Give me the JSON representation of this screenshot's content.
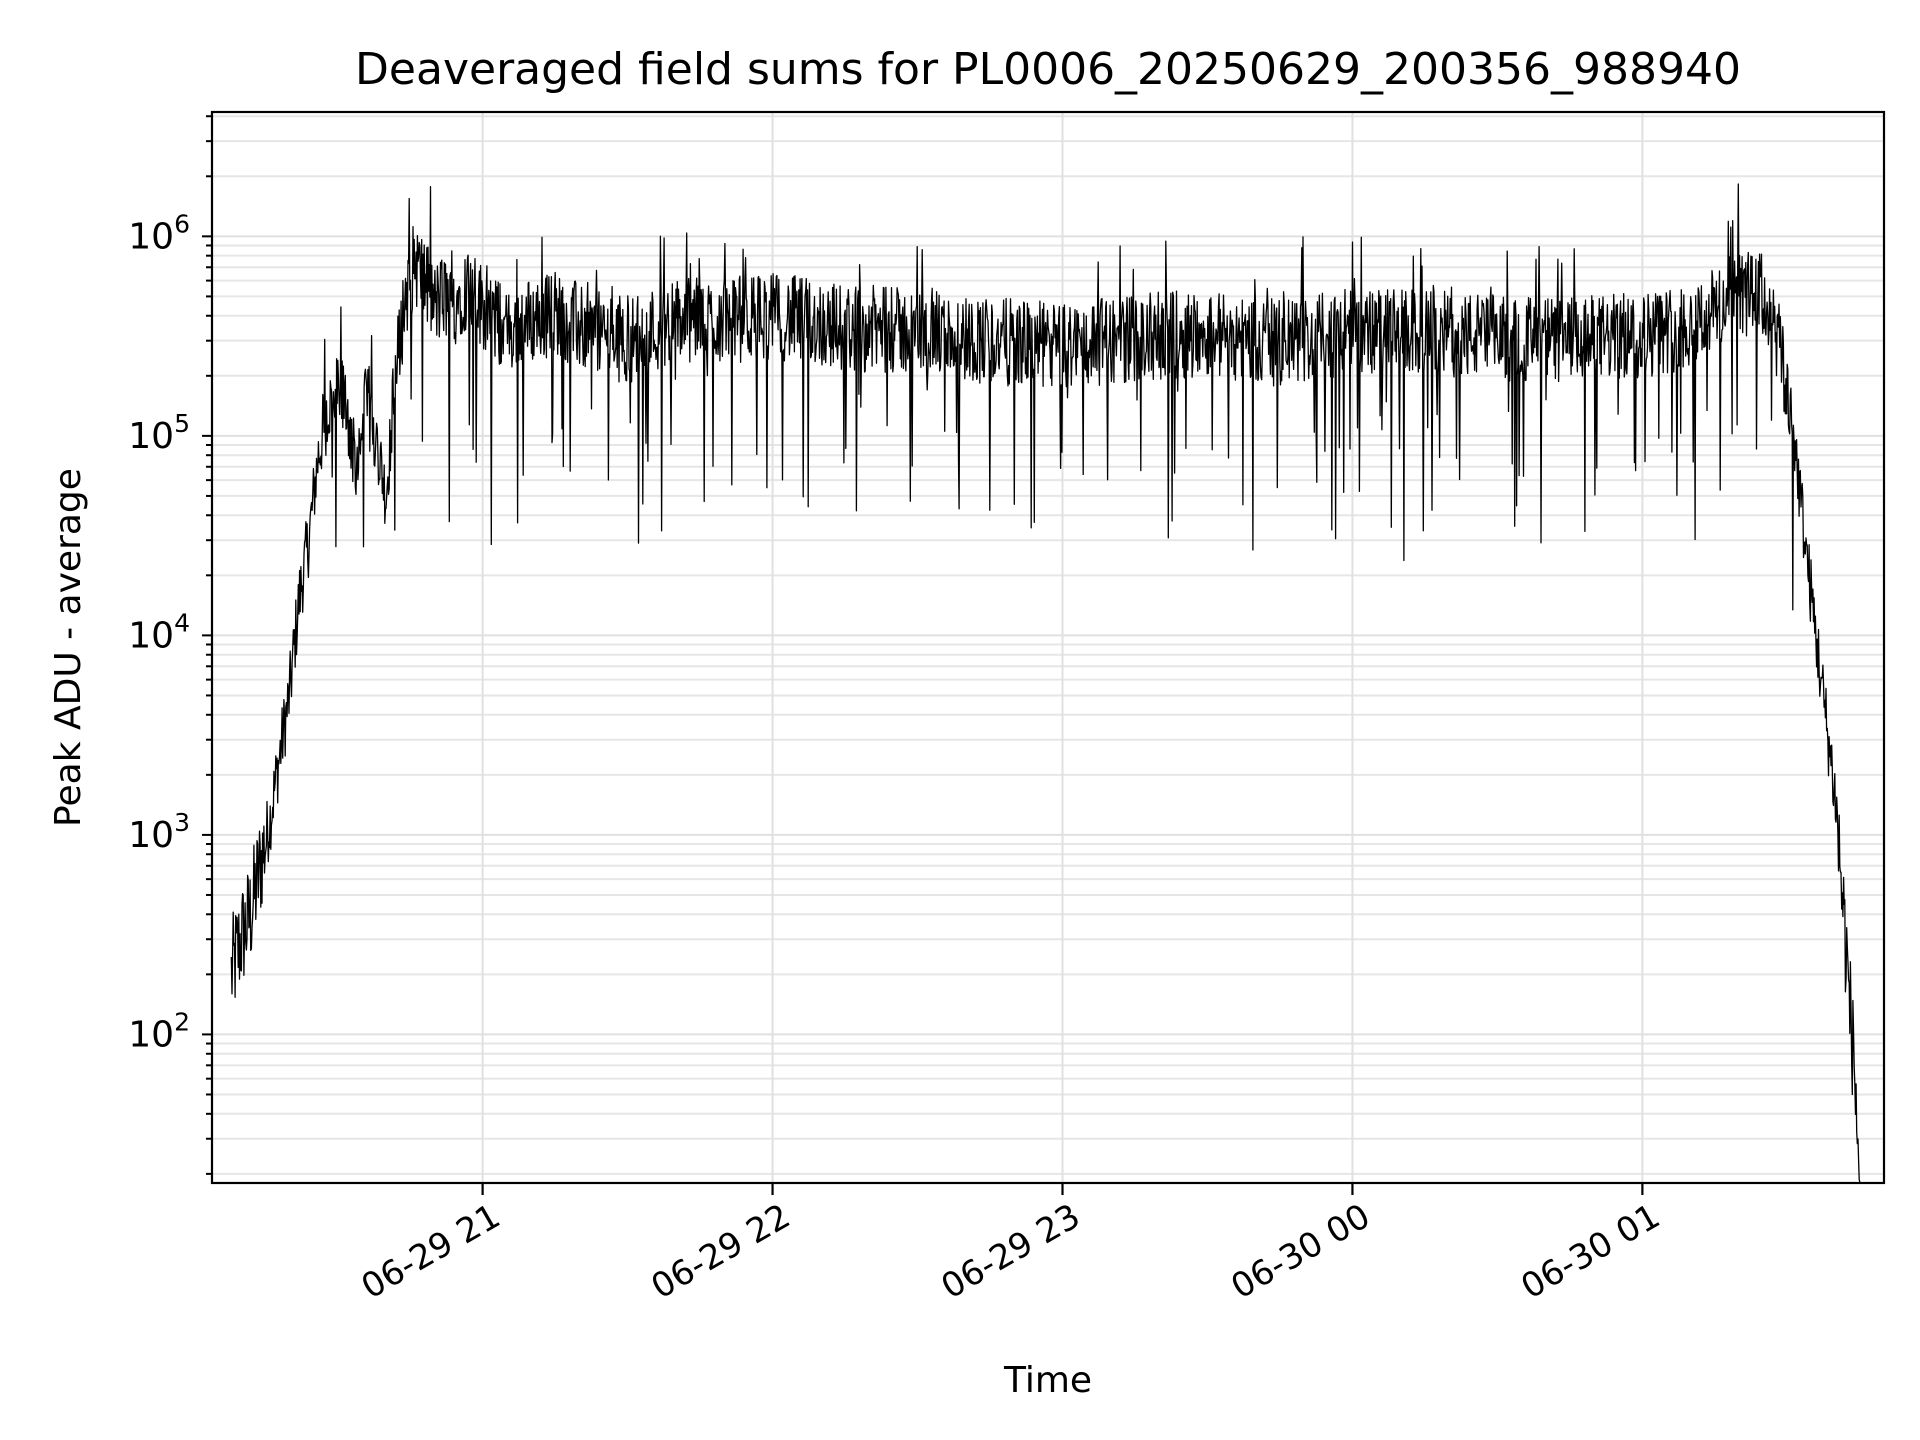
{
  "chart_data": {
    "type": "line",
    "title": "Deaveraged field sums for PL0006_20250629_200356_988940",
    "xlabel": "Time",
    "ylabel": "Peak ADU - average",
    "yscale": "log",
    "ylim": [
      18,
      4200000
    ],
    "xlim": [
      "2025-06-29 20:04",
      "2025-06-30 01:50"
    ],
    "grid": true,
    "line_color": "#000000",
    "x_ticks": [
      {
        "label": "06-29 21",
        "time": "2025-06-29 21:00"
      },
      {
        "label": "06-29 22",
        "time": "2025-06-29 22:00"
      },
      {
        "label": "06-29 23",
        "time": "2025-06-29 23:00"
      },
      {
        "label": "06-30 00",
        "time": "2025-06-30 00:00"
      },
      {
        "label": "06-30 01",
        "time": "2025-06-30 01:00"
      }
    ],
    "y_ticks": [
      {
        "base": "10",
        "exp": "2",
        "value": 100
      },
      {
        "base": "10",
        "exp": "3",
        "value": 1000
      },
      {
        "base": "10",
        "exp": "4",
        "value": 10000
      },
      {
        "base": "10",
        "exp": "5",
        "value": 100000
      },
      {
        "base": "10",
        "exp": "6",
        "value": 1000000
      }
    ],
    "series": [
      {
        "x": [
          "2025-06-29 20:08",
          "2025-06-29 20:10",
          "2025-06-29 20:12",
          "2025-06-29 20:14",
          "2025-06-29 20:16",
          "2025-06-29 20:18",
          "2025-06-29 20:20",
          "2025-06-29 20:22",
          "2025-06-29 20:24",
          "2025-06-29 20:26",
          "2025-06-29 20:28",
          "2025-06-29 20:30",
          "2025-06-29 20:32",
          "2025-06-29 20:34",
          "2025-06-29 20:36",
          "2025-06-29 20:38",
          "2025-06-29 20:40",
          "2025-06-29 20:42",
          "2025-06-29 20:44",
          "2025-06-29 20:46",
          "2025-06-29 20:48",
          "2025-06-29 20:50",
          "2025-06-29 20:52",
          "2025-06-29 20:54",
          "2025-06-29 20:56",
          "2025-06-29 20:58",
          "2025-06-29 21:00",
          "2025-06-29 21:05",
          "2025-06-29 21:10",
          "2025-06-29 21:15",
          "2025-06-29 21:20",
          "2025-06-29 21:30",
          "2025-06-29 21:40",
          "2025-06-29 21:50",
          "2025-06-29 22:00",
          "2025-06-29 22:15",
          "2025-06-29 22:30",
          "2025-06-29 22:45",
          "2025-06-29 23:00",
          "2025-06-29 23:15",
          "2025-06-29 23:30",
          "2025-06-29 23:45",
          "2025-06-30 00:00",
          "2025-06-30 00:15",
          "2025-06-30 00:30",
          "2025-06-30 00:45",
          "2025-06-30 01:00",
          "2025-06-30 01:10",
          "2025-06-30 01:15",
          "2025-06-30 01:20",
          "2025-06-30 01:25",
          "2025-06-30 01:28",
          "2025-06-30 01:31",
          "2025-06-30 01:34",
          "2025-06-30 01:37",
          "2025-06-30 01:40",
          "2025-06-30 01:42",
          "2025-06-30 01:44",
          "2025-06-30 01:45"
        ],
        "y": [
          200,
          300,
          400,
          700,
          1200,
          2500,
          5000,
          15000,
          30000,
          80000,
          130000,
          160000,
          140000,
          60000,
          150000,
          100000,
          50000,
          200000,
          500000,
          750000,
          600000,
          450000,
          500000,
          450000,
          550000,
          500000,
          450000,
          330000,
          380000,
          420000,
          350000,
          300000,
          380000,
          380000,
          400000,
          350000,
          330000,
          300000,
          280000,
          310000,
          330000,
          290000,
          330000,
          330000,
          310000,
          300000,
          320000,
          360000,
          430000,
          520000,
          500000,
          300000,
          120000,
          25000,
          6000,
          1500,
          300,
          60,
          18
        ]
      }
    ]
  }
}
